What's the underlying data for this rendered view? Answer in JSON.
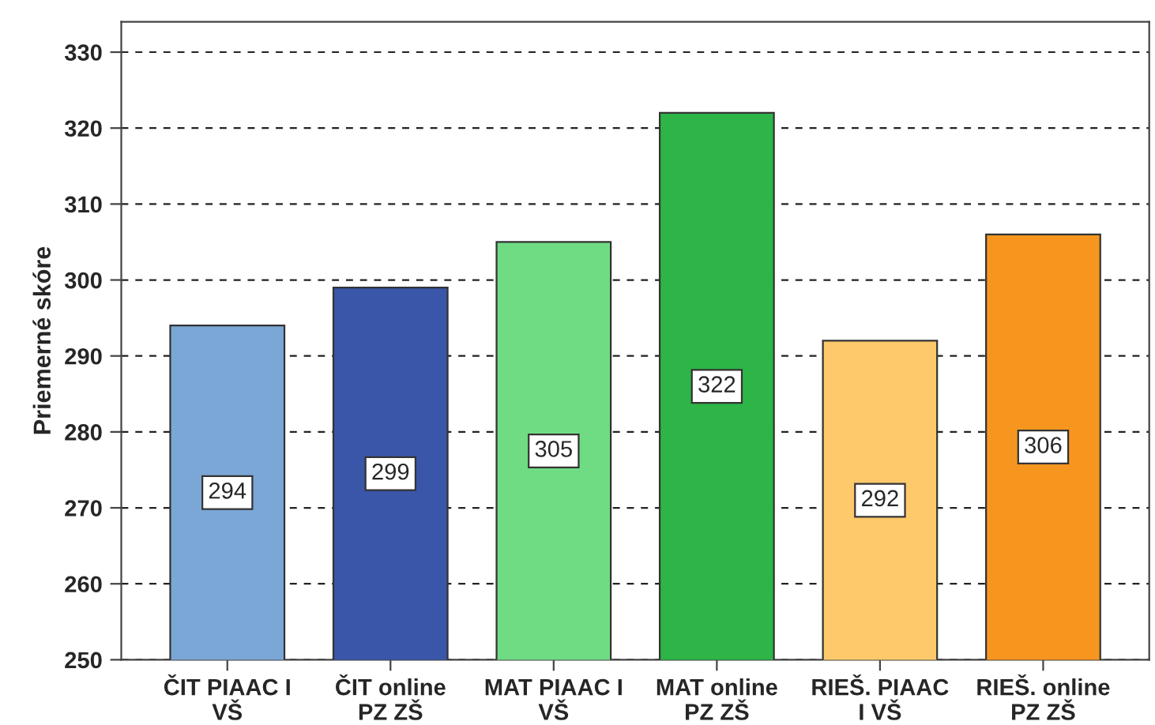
{
  "chart_data": {
    "type": "bar",
    "ylabel": "Priemerné skóre",
    "categories": [
      "ČIT PIAAC I\nVŠ",
      "ČIT online\nPZ ZŠ",
      "MAT PIAAC I\nVŠ",
      "MAT online\nPZ ZŠ",
      "RIEŠ. PIAAC\nI VŠ",
      "RIEŠ. online\nPZ ZŠ"
    ],
    "values": [
      294,
      299,
      305,
      322,
      292,
      306
    ],
    "colors": [
      "#7ba7d6",
      "#3a56a8",
      "#6fdc84",
      "#2db547",
      "#fdc96a",
      "#f7961f"
    ],
    "ylim": [
      250,
      334
    ],
    "yticks": [
      250,
      260,
      270,
      280,
      290,
      300,
      310,
      320,
      330
    ],
    "grid": "y",
    "data_labels": true
  }
}
